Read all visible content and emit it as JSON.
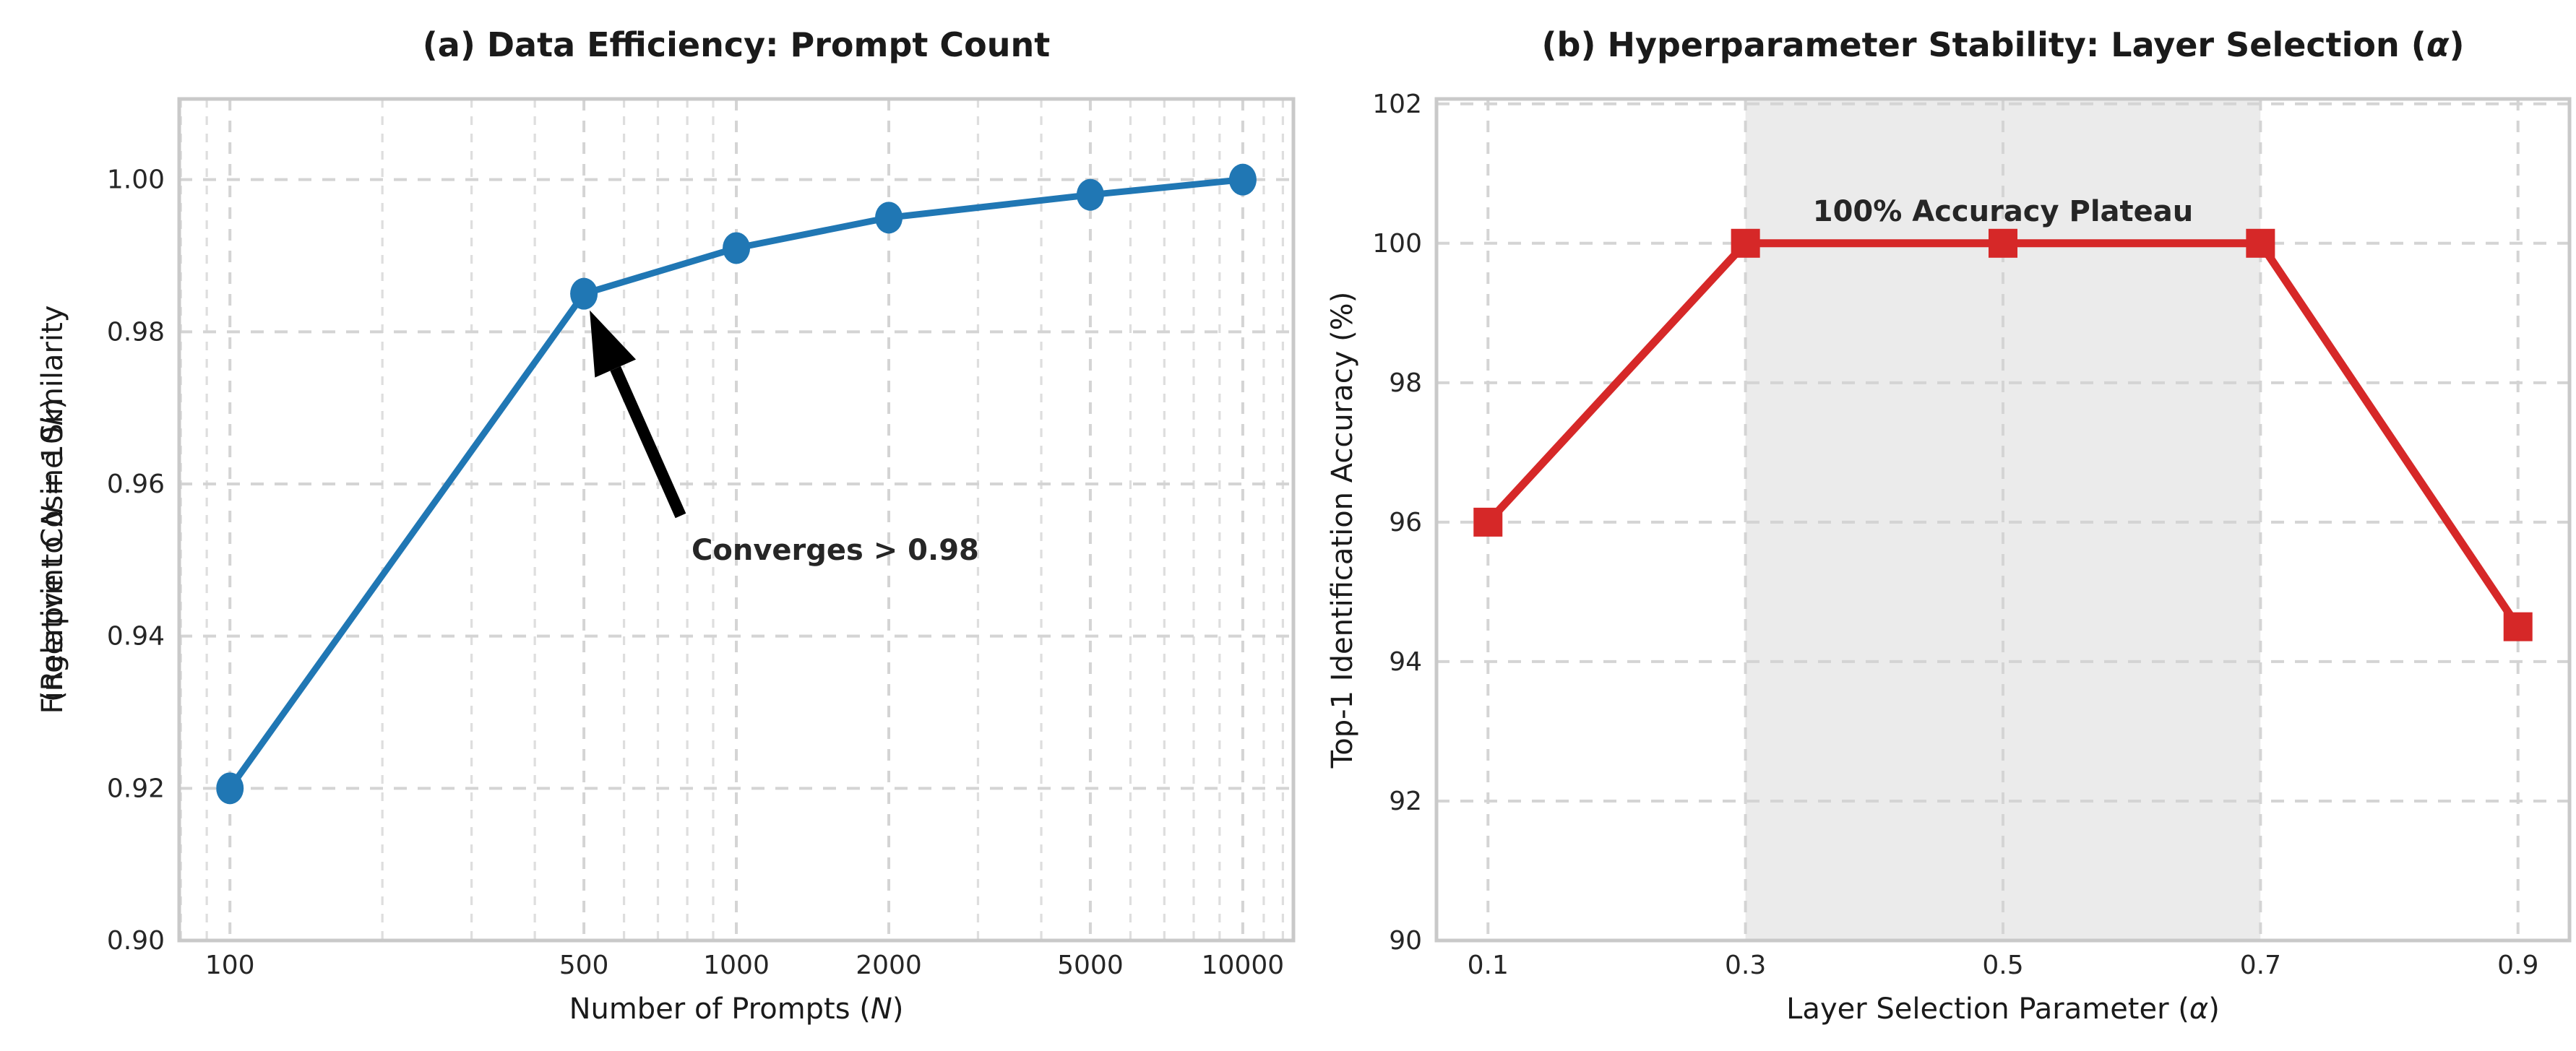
{
  "figure": {
    "background": "#ffffff",
    "spine_color": "#c9c9c9",
    "grid_major_color": "#d4d4d4",
    "grid_minor_color": "#dedede",
    "text_color": "#1a1a1a"
  },
  "chart_data": [
    {
      "type": "line",
      "name": "data-efficiency",
      "title": "(a) Data Efficiency: Prompt Count",
      "title_parts": [
        {
          "t": "(a) Data Efficiency: Prompt Count"
        }
      ],
      "xlabel": "Number of Prompts (N)",
      "xlabel_parts": [
        {
          "t": "Number of Prompts ("
        },
        {
          "t": "N",
          "i": true
        },
        {
          "t": ")"
        }
      ],
      "ylabel": "Fingerprint Cosine Similarity (Relative to N = 10k)",
      "ylabel_line1": "Fingerprint Cosine Similarity",
      "ylabel_lines": [
        [
          {
            "t": "Fingerprint Cosine Similarity"
          }
        ],
        [
          {
            "t": "(Relative to "
          },
          {
            "t": "N",
            "i": true
          },
          {
            "t": " = 10"
          },
          {
            "t": "k",
            "i": true
          },
          {
            "t": ")"
          }
        ]
      ],
      "x_scale": "log",
      "xlim": [
        79.4,
        12589
      ],
      "ylim": [
        0.9,
        1.0106
      ],
      "x": [
        100,
        500,
        1000,
        2000,
        5000,
        10000
      ],
      "y": [
        0.92,
        0.985,
        0.991,
        0.995,
        0.998,
        1.0
      ],
      "xticks": [
        100,
        500,
        1000,
        2000,
        5000,
        10000
      ],
      "xtick_labels": [
        "100",
        "500",
        "1000",
        "2000",
        "5000",
        "10000"
      ],
      "minor_xticks": [
        80,
        90,
        200,
        300,
        400,
        600,
        700,
        800,
        900,
        3000,
        4000,
        6000,
        7000,
        8000,
        9000,
        11000,
        12000
      ],
      "yticks": [
        0.9,
        0.92,
        0.94,
        0.96,
        0.98,
        1.0
      ],
      "ytick_labels": [
        "0.90",
        "0.92",
        "0.94",
        "0.96",
        "0.98",
        "1.00"
      ],
      "line_color": "#2077b4",
      "marker": "circle",
      "grid": true,
      "legend": null,
      "annotation": {
        "text": "Converges > 0.98",
        "color": "#1a1a1a",
        "arrow_color": "#000000",
        "target_x": 500,
        "target_y": 0.985
      }
    },
    {
      "type": "line",
      "name": "hyperparameter-stability",
      "title": "(b) Hyperparameter Stability: Layer Selection (α)",
      "title_parts": [
        {
          "t": "(b) Hyperparameter Stability: Layer Selection ("
        },
        {
          "t": "α",
          "i": true
        },
        {
          "t": ")"
        }
      ],
      "xlabel": "Layer Selection Parameter (α)",
      "xlabel_parts": [
        {
          "t": "Layer Selection Parameter ("
        },
        {
          "t": "α",
          "i": true
        },
        {
          "t": ")"
        }
      ],
      "ylabel": "Top-1 Identification Accuracy (%)",
      "ylabel_lines": [
        [
          {
            "t": "Top-1 Identification Accuracy (%)"
          }
        ]
      ],
      "x_scale": "linear",
      "xlim": [
        0.06,
        0.94
      ],
      "ylim": [
        90,
        102.07
      ],
      "x": [
        0.1,
        0.3,
        0.5,
        0.7,
        0.9
      ],
      "y": [
        96,
        100,
        100,
        100,
        94.5
      ],
      "xticks": [
        0.1,
        0.3,
        0.5,
        0.7,
        0.9
      ],
      "xtick_labels": [
        "0.1",
        "0.3",
        "0.5",
        "0.7",
        "0.9"
      ],
      "minor_xticks": [],
      "yticks": [
        90,
        92,
        94,
        96,
        98,
        100,
        102
      ],
      "ytick_labels": [
        "90",
        "92",
        "94",
        "96",
        "98",
        "100",
        "102"
      ],
      "line_color": "#d62828",
      "marker": "square",
      "grid": true,
      "legend": null,
      "highlight_band": {
        "from": 0.3,
        "to": 0.7,
        "color": "#ebebeb"
      },
      "annotation": {
        "text": "100% Accuracy Plateau",
        "color": "#8f0f0f"
      }
    }
  ]
}
